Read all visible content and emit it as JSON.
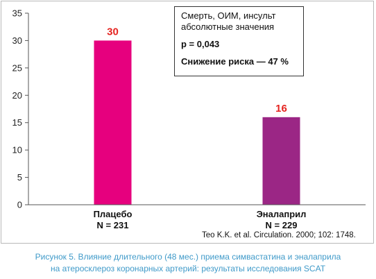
{
  "chart_data": {
    "type": "bar",
    "categories": [
      "Плацебо",
      "Эналаприл"
    ],
    "category_sublabels": [
      "N = 231",
      "N = 229"
    ],
    "values": [
      30,
      16
    ],
    "data_labels": [
      "30",
      "16"
    ],
    "bar_colors": [
      "#e6007e",
      "#9b2685"
    ],
    "data_label_color": "#e52420",
    "ylim": [
      0,
      35
    ],
    "yticks": [
      0,
      5,
      10,
      15,
      20,
      25,
      30,
      35
    ],
    "grid": false,
    "title": "",
    "xlabel": "",
    "ylabel": "",
    "annotations": [
      "Смерть, ОИМ, инсульт",
      "абсолютные значения",
      "р = 0,043",
      "Снижение риска — 47 %"
    ]
  },
  "source_note": "Teo K.K. et al. Circulation. 2000; 102: 1748.",
  "caption": {
    "line1": "Рисунок 5.  Влияние длительного (48 мес.) приема симвастатина и эналаприла",
    "line2": "на атеросклероз коронарных артерий: результаты исследования SCAT"
  },
  "colors": {
    "caption": "#3f9ac9",
    "frame_border": "#b9b9b9"
  }
}
